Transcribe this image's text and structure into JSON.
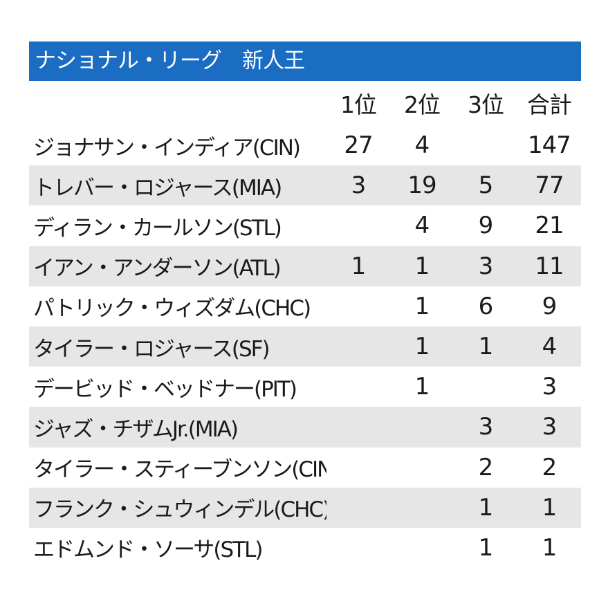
{
  "title": "ナショナル・リーグ　新人王",
  "columns": [
    "1位",
    "2位",
    "3位",
    "合計"
  ],
  "rows": [
    {
      "name": "ジョナサン・インディア(CIN)",
      "first": "27",
      "second": "4",
      "third": "",
      "total": "147"
    },
    {
      "name": "トレバー・ロジャース(MIA)",
      "first": "3",
      "second": "19",
      "third": "5",
      "total": "77"
    },
    {
      "name": "ディラン・カールソン(STL)",
      "first": "",
      "second": "4",
      "third": "9",
      "total": "21"
    },
    {
      "name": "イアン・アンダーソン(ATL)",
      "first": "1",
      "second": "1",
      "third": "3",
      "total": "11"
    },
    {
      "name": "パトリック・ウィズダム(CHC)",
      "first": "",
      "second": "1",
      "third": "6",
      "total": "9"
    },
    {
      "name": "タイラー・ロジャース(SF)",
      "first": "",
      "second": "1",
      "third": "1",
      "total": "4"
    },
    {
      "name": "デービッド・ベッドナー(PIT)",
      "first": "",
      "second": "1",
      "third": "",
      "total": "3"
    },
    {
      "name": "ジャズ・チザムJr.(MIA)",
      "first": "",
      "second": "",
      "third": "3",
      "total": "3"
    },
    {
      "name": "タイラー・スティーブンソン(CIN)",
      "first": "",
      "second": "",
      "third": "2",
      "total": "2"
    },
    {
      "name": "フランク・シュウィンデル(CHC)",
      "first": "",
      "second": "",
      "third": "1",
      "total": "1"
    },
    {
      "name": "エドムンド・ソーサ(STL)",
      "first": "",
      "second": "",
      "third": "1",
      "total": "1"
    }
  ],
  "colors": {
    "title_bar": "#1a6dc3",
    "stripe": "#e6e6e6"
  }
}
